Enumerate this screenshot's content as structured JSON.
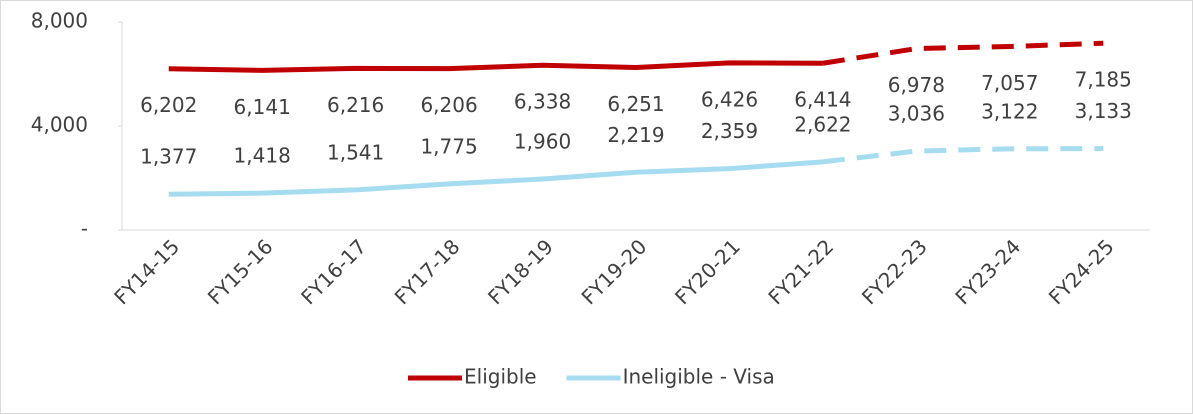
{
  "chart_data": {
    "type": "line",
    "categories": [
      "FY14-15",
      "FY15-16",
      "FY16-17",
      "FY17-18",
      "FY18-19",
      "FY19-20",
      "FY20-21",
      "FY21-22",
      "FY22-23",
      "FY23-24",
      "FY24-25"
    ],
    "series": [
      {
        "name": "Eligible",
        "color": "#c00000",
        "values": [
          6202,
          6141,
          6216,
          6206,
          6338,
          6251,
          6426,
          6414,
          6978,
          7057,
          7185
        ],
        "value_labels": [
          "6,202",
          "6,141",
          "6,216",
          "6,206",
          "6,338",
          "6,251",
          "6,426",
          "6,414",
          "6,978",
          "7,057",
          "7,185"
        ],
        "label_position": "below"
      },
      {
        "name": "Ineligible - Visa",
        "color": "#a6dcef",
        "values": [
          1377,
          1418,
          1541,
          1775,
          1960,
          2219,
          2359,
          2622,
          3036,
          3122,
          3133
        ],
        "value_labels": [
          "1,377",
          "1,418",
          "1,541",
          "1,775",
          "1,960",
          "2,219",
          "2,359",
          "2,622",
          "3,036",
          "3,122",
          "3,133"
        ],
        "label_position": "above"
      }
    ],
    "dashed_after": "FY21-22",
    "ylim": [
      0,
      8000
    ],
    "yticks": [
      {
        "value": 0,
        "label": "-"
      },
      {
        "value": 4000,
        "label": "4,000"
      },
      {
        "value": 8000,
        "label": "8,000"
      }
    ],
    "grid": false,
    "legend": "bottom"
  }
}
